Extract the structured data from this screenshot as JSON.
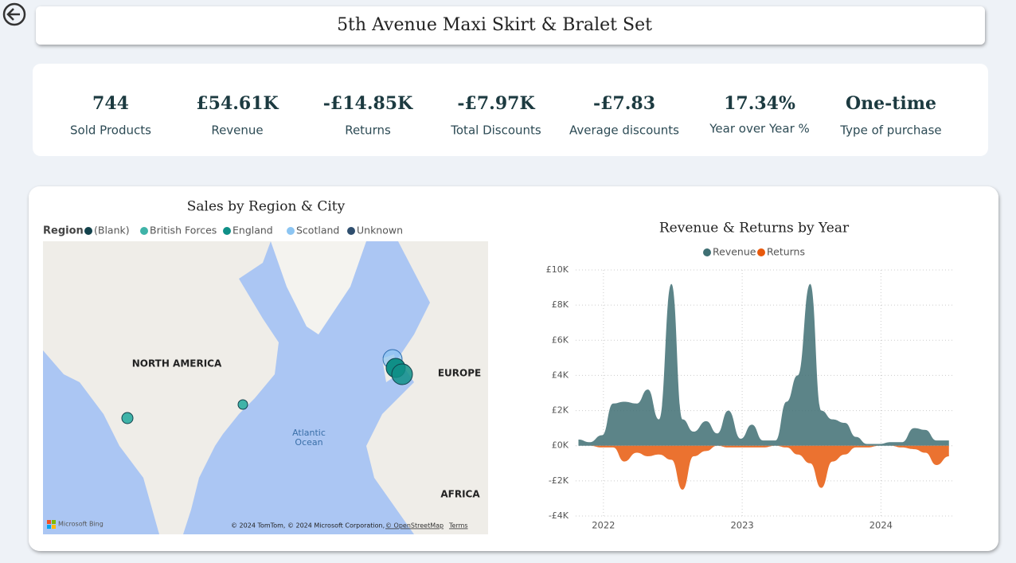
{
  "header": {
    "title": "5th Avenue Maxi Skirt & Bralet Set"
  },
  "kpis": [
    {
      "value": "744",
      "label": "Sold Products"
    },
    {
      "value": "£54.61K",
      "label": "Revenue"
    },
    {
      "value": "-£14.85K",
      "label": "Returns"
    },
    {
      "value": "-£7.97K",
      "label": "Total Discounts"
    },
    {
      "value": "-£7.83",
      "label": "Average discounts"
    },
    {
      "value": "17.34%",
      "label": "Year over Year %"
    },
    {
      "value": "One-time",
      "label": "Type of purchase"
    }
  ],
  "map": {
    "title": "Sales by Region & City",
    "legend_title": "Region",
    "legend": [
      {
        "name": "(Blank)",
        "color": "#12414b"
      },
      {
        "name": "British Forces",
        "color": "#3fb3a8"
      },
      {
        "name": "England",
        "color": "#0f8f87"
      },
      {
        "name": "Scotland",
        "color": "#8cc5f2"
      },
      {
        "name": "Unknown",
        "color": "#2f4e6e"
      }
    ],
    "labels": [
      "NORTH AMERICA",
      "EUROPE",
      "Atlantic Ocean",
      "AFRICA"
    ],
    "brand": "Microsoft Bing",
    "credits": [
      "© 2024 TomTom, © 2024 Microsoft Corporation,",
      "© OpenStreetMap",
      "Terms"
    ]
  },
  "chart_data": {
    "type": "area",
    "title": "Revenue & Returns by Year",
    "x": [
      2021.82,
      2021.9,
      2021.99,
      2022.07,
      2022.15,
      2022.24,
      2022.32,
      2022.4,
      2022.49,
      2022.57,
      2022.65,
      2022.74,
      2022.82,
      2022.9,
      2022.99,
      2023.07,
      2023.15,
      2023.24,
      2023.32,
      2023.4,
      2023.49,
      2023.57,
      2023.65,
      2023.74,
      2023.82,
      2023.9,
      2023.99,
      2024.07,
      2024.15,
      2024.24,
      2024.32,
      2024.4,
      2024.49
    ],
    "series": [
      {
        "name": "Revenue",
        "color": "#3f6f73",
        "values": [
          350,
          200,
          600,
          2400,
          2500,
          2400,
          3200,
          1500,
          9200,
          1500,
          800,
          1400,
          700,
          2000,
          400,
          1200,
          300,
          300,
          2500,
          4000,
          9200,
          2000,
          1500,
          1300,
          500,
          100,
          100,
          200,
          200,
          1000,
          900,
          300,
          300
        ]
      },
      {
        "name": "Returns",
        "color": "#e8590c",
        "values": [
          0,
          0,
          -100,
          -100,
          -900,
          -400,
          -600,
          -500,
          -800,
          -2500,
          -600,
          -300,
          0,
          -100,
          -100,
          -100,
          -100,
          0,
          -100,
          -500,
          -1000,
          -2400,
          -900,
          -500,
          -100,
          -100,
          0,
          0,
          -100,
          -200,
          -400,
          -1100,
          -600
        ]
      }
    ],
    "xlim": [
      2021.8,
      2024.52
    ],
    "xticks": [
      2022,
      2023,
      2024
    ],
    "ylim": [
      -4000,
      10000
    ],
    "yticks": [
      {
        "value": -4000,
        "label": "-£4K"
      },
      {
        "value": -2000,
        "label": "-£2K"
      },
      {
        "value": 0,
        "label": "£0K"
      },
      {
        "value": 2000,
        "label": "£2K"
      },
      {
        "value": 4000,
        "label": "£4K"
      },
      {
        "value": 6000,
        "label": "£6K"
      },
      {
        "value": 8000,
        "label": "£8K"
      },
      {
        "value": 10000,
        "label": "£10K"
      }
    ],
    "grid": true
  }
}
